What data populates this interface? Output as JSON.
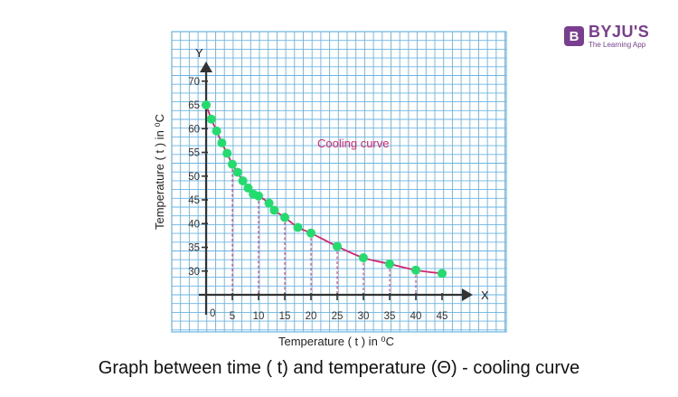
{
  "brand": {
    "name": "BYJU'S",
    "tagline": "The Learning App",
    "mark": "B",
    "color": "#7a3e91"
  },
  "caption": "Graph between time ( t) and temperature (Θ) - cooling curve",
  "colors": {
    "grid": "#6ab4e3",
    "curve": "#d6246e",
    "points": "#22dd6e",
    "axis": "#333333",
    "dropline": "#d6246e"
  },
  "chart_data": {
    "type": "line",
    "title": "",
    "xlabel": "Temperature ( t ) in ⁰C",
    "ylabel": "Temperature ( t ) in ⁰C",
    "x_axis_letter": "X",
    "y_axis_letter": "Y",
    "origin_label": "0",
    "annotation": "Cooling curve",
    "xlim": [
      0,
      45
    ],
    "ylim": [
      25,
      70
    ],
    "x_ticks": [
      5,
      10,
      15,
      20,
      25,
      30,
      35,
      40,
      45
    ],
    "y_ticks": [
      30,
      35,
      40,
      45,
      50,
      55,
      60,
      65,
      70
    ],
    "grid": true,
    "series": [
      {
        "x": [
          0,
          1,
          2,
          3,
          4,
          5,
          6,
          7,
          8,
          9,
          10,
          12,
          13,
          15,
          17.5,
          20,
          25,
          30,
          35,
          40,
          45
        ],
        "y": [
          65,
          62,
          59.5,
          57,
          54.8,
          52.5,
          50.8,
          49,
          47.5,
          46.2,
          45.8,
          44.3,
          42.8,
          41.3,
          39.2,
          38,
          35.2,
          32.8,
          31.5,
          30.2,
          29.5
        ]
      }
    ],
    "droplines_at_x": [
      5,
      10,
      15,
      20,
      25,
      30,
      35,
      40
    ]
  }
}
